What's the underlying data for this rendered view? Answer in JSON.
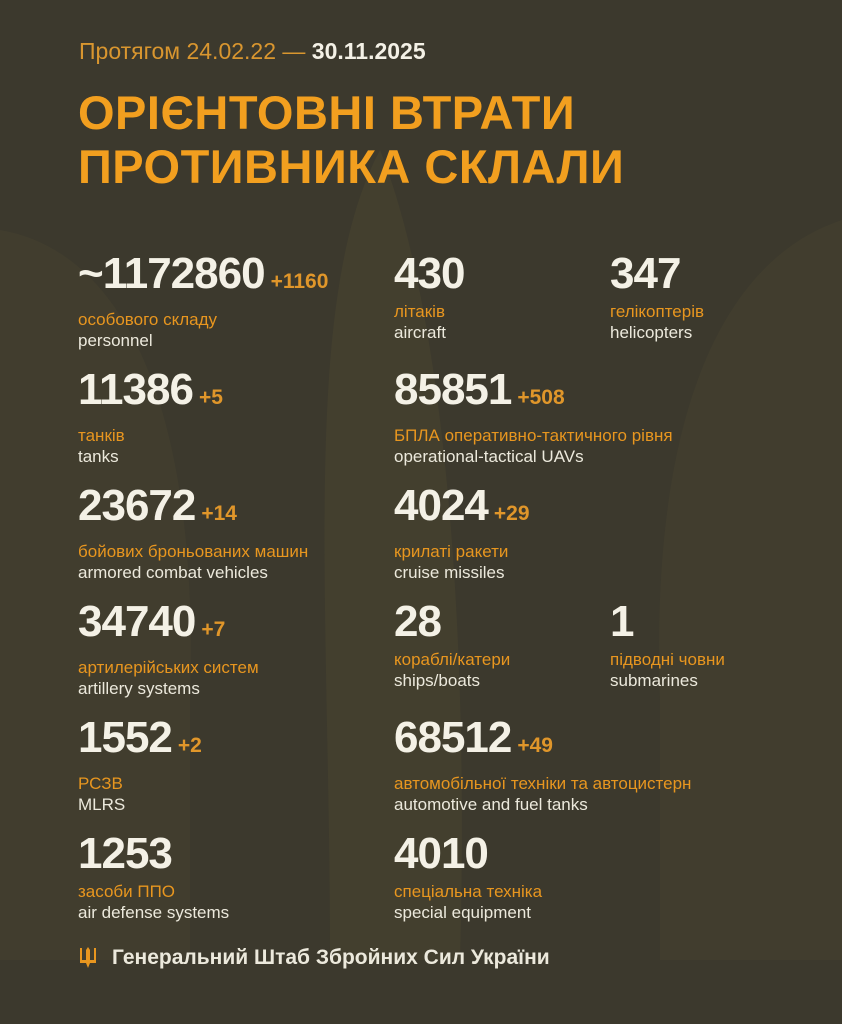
{
  "header": {
    "period_prefix": "Протягом 24.02.22 —",
    "period_end": "30.11.2025",
    "title_line1": "ОРІЄНТОВНІ ВТРАТИ",
    "title_line2": "ПРОТИВНИКА СКЛАЛИ"
  },
  "rows": [
    {
      "cells": [
        {
          "value": "~1172860",
          "delta": "+1160",
          "ua": "особового складу",
          "en": "personnel"
        },
        {
          "value": "430",
          "delta": "",
          "ua": "літаків",
          "en": "aircraft"
        },
        {
          "value": "347",
          "delta": "",
          "ua": "гелікоптерів",
          "en": "helicopters"
        }
      ]
    },
    {
      "cells": [
        {
          "value": "11386",
          "delta": "+5",
          "ua": "танків",
          "en": "tanks"
        },
        {
          "value": "85851",
          "delta": "+508",
          "ua": "БПЛА оперативно-тактичного рівня",
          "en": "operational-tactical UAVs"
        }
      ]
    },
    {
      "cells": [
        {
          "value": "23672",
          "delta": "+14",
          "ua": "бойових броньованих машин",
          "en": "armored combat vehicles"
        },
        {
          "value": "4024",
          "delta": "+29",
          "ua": "крилаті ракети",
          "en": "cruise missiles"
        }
      ]
    },
    {
      "cells": [
        {
          "value": "34740",
          "delta": "+7",
          "ua": "артилерійських систем",
          "en": "artillery systems"
        },
        {
          "value": "28",
          "delta": "",
          "ua": "кораблі/катери",
          "en": "ships/boats"
        },
        {
          "value": "1",
          "delta": "",
          "ua": "підводні човни",
          "en": "submarines"
        }
      ]
    },
    {
      "cells": [
        {
          "value": "1552",
          "delta": "+2",
          "ua": "РСЗВ",
          "en": "MLRS"
        },
        {
          "value": "68512",
          "delta": "+49",
          "ua": "автомобільної техніки та автоцистерн",
          "en": "automotive and fuel tanks"
        }
      ]
    },
    {
      "cells": [
        {
          "value": "1253",
          "delta": "",
          "ua": "засоби ППО",
          "en": "air defense systems"
        },
        {
          "value": "4010",
          "delta": "",
          "ua": "спеціальна техніка",
          "en": "special equipment"
        }
      ]
    }
  ],
  "footer": {
    "text": "Генеральний Штаб Збройних Сил України",
    "icon": "trident-icon"
  },
  "colors": {
    "background": "#3c392d",
    "accent": "#f29f1f",
    "text": "#f4f1e6"
  }
}
